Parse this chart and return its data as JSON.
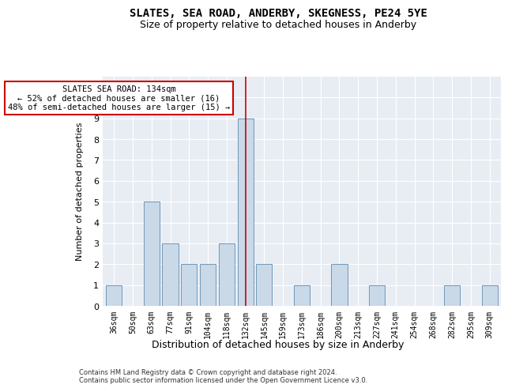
{
  "title": "SLATES, SEA ROAD, ANDERBY, SKEGNESS, PE24 5YE",
  "subtitle": "Size of property relative to detached houses in Anderby",
  "xlabel_bottom": "Distribution of detached houses by size in Anderby",
  "ylabel": "Number of detached properties",
  "categories": [
    "36sqm",
    "50sqm",
    "63sqm",
    "77sqm",
    "91sqm",
    "104sqm",
    "118sqm",
    "132sqm",
    "145sqm",
    "159sqm",
    "173sqm",
    "186sqm",
    "200sqm",
    "213sqm",
    "227sqm",
    "241sqm",
    "254sqm",
    "268sqm",
    "282sqm",
    "295sqm",
    "309sqm"
  ],
  "values": [
    1,
    0,
    5,
    3,
    2,
    2,
    3,
    9,
    2,
    0,
    1,
    0,
    2,
    0,
    1,
    0,
    0,
    0,
    1,
    0,
    1
  ],
  "bar_color": "#c9d9e8",
  "bar_edge_color": "#7098b8",
  "highlight_index": 7,
  "highlight_line_color": "#cc0000",
  "annotation_line1": "SLATES SEA ROAD: 134sqm",
  "annotation_line2": "← 52% of detached houses are smaller (16)",
  "annotation_line3": "48% of semi-detached houses are larger (15) →",
  "annotation_box_color": "#ffffff",
  "annotation_box_edge": "#cc0000",
  "ylim": [
    0,
    11
  ],
  "yticks": [
    0,
    1,
    2,
    3,
    4,
    5,
    6,
    7,
    8,
    9,
    10,
    11
  ],
  "background_color": "#e8edf4",
  "footer_line1": "Contains HM Land Registry data © Crown copyright and database right 2024.",
  "footer_line2": "Contains public sector information licensed under the Open Government Licence v3.0.",
  "title_fontsize": 10,
  "subtitle_fontsize": 9,
  "tick_fontsize": 7,
  "ylabel_fontsize": 8,
  "annotation_fontsize": 7.5,
  "footer_fontsize": 6
}
